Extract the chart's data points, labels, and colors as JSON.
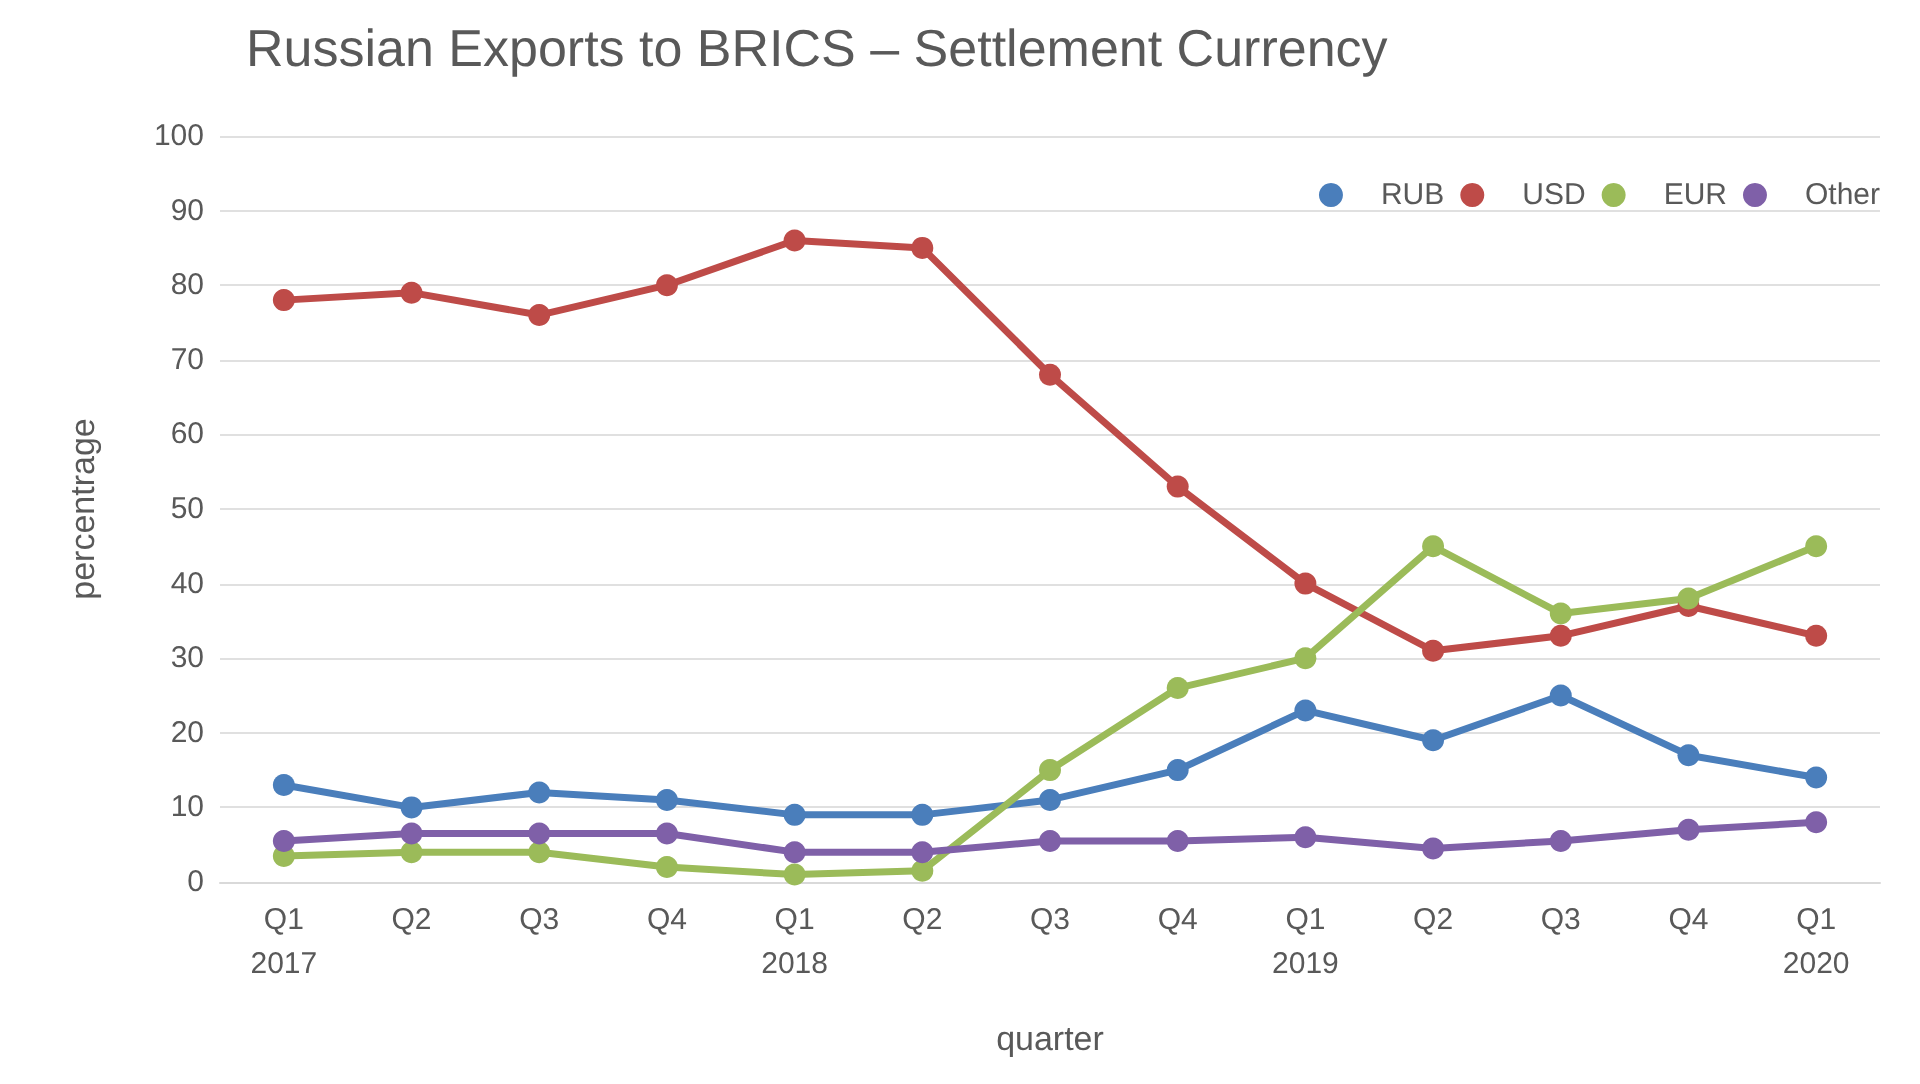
{
  "chart_data": {
    "type": "line",
    "title": "Russian Exports to BRICS – Settlement Currency",
    "xlabel": "quarter",
    "ylabel": "percentrage",
    "categories": [
      "Q1\n2017",
      "Q2",
      "Q3",
      "Q4",
      "Q1\n2018",
      "Q2",
      "Q3",
      "Q4",
      "Q1\n2019",
      "Q2",
      "Q3",
      "Q4",
      "Q1\n2020"
    ],
    "series": [
      {
        "name": "RUB",
        "color": "#4a7ebb",
        "values": [
          13,
          10,
          12,
          11,
          9,
          9,
          11,
          15,
          23,
          19,
          25,
          17,
          14
        ]
      },
      {
        "name": "USD",
        "color": "#be4b48",
        "values": [
          78,
          79,
          76,
          80,
          86,
          85,
          68,
          53,
          40,
          31,
          33,
          37,
          33
        ]
      },
      {
        "name": "EUR",
        "color": "#9bbb59",
        "values": [
          3.5,
          4,
          4,
          2,
          1,
          1.5,
          15,
          26,
          30,
          45,
          36,
          38,
          45
        ]
      },
      {
        "name": "Other",
        "color": "#7f60a8",
        "values": [
          5.5,
          6.5,
          6.5,
          6.5,
          4,
          4,
          5.5,
          5.5,
          6,
          4.5,
          5.5,
          7,
          8
        ]
      }
    ],
    "ylim": [
      0,
      100
    ],
    "yticks": [
      0,
      10,
      20,
      30,
      40,
      50,
      60,
      70,
      80,
      90,
      100
    ],
    "grid": "y",
    "legend": "top right",
    "marker": "circle",
    "line_style": "solid"
  }
}
